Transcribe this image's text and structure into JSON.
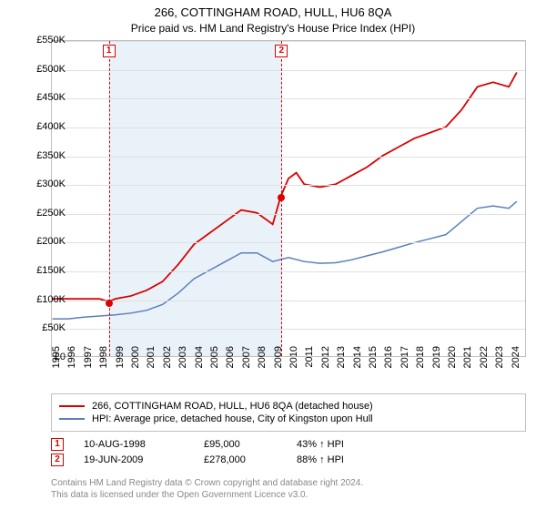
{
  "title": "266, COTTINGHAM ROAD, HULL, HU6 8QA",
  "subtitle": "Price paid vs. HM Land Registry's House Price Index (HPI)",
  "chart": {
    "type": "line",
    "background_color": "#ffffff",
    "grid_color": "#e0e0e0",
    "border_color": "#c0c0c0",
    "shade_band_color": "#eaf2f9",
    "shade_band_xrange": [
      1998.6,
      2009.5
    ],
    "xlim": [
      1995,
      2025
    ],
    "ylim": [
      0,
      550000
    ],
    "ytick_step": 50000,
    "yticks": [
      "£0",
      "£50K",
      "£100K",
      "£150K",
      "£200K",
      "£250K",
      "£300K",
      "£350K",
      "£400K",
      "£450K",
      "£500K",
      "£550K"
    ],
    "xticks": [
      1995,
      1996,
      1997,
      1998,
      1999,
      2000,
      2001,
      2002,
      2003,
      2004,
      2005,
      2006,
      2007,
      2008,
      2009,
      2010,
      2011,
      2012,
      2013,
      2014,
      2015,
      2016,
      2017,
      2018,
      2019,
      2020,
      2021,
      2022,
      2023,
      2024
    ],
    "series": [
      {
        "name": "266, COTTINGHAM ROAD, HULL, HU6 8QA (detached house)",
        "color": "#d90000",
        "line_width": 1.8,
        "data": [
          [
            1995,
            100000
          ],
          [
            1996,
            100000
          ],
          [
            1997,
            100000
          ],
          [
            1998,
            100000
          ],
          [
            1998.6,
            95000
          ],
          [
            1999,
            100000
          ],
          [
            2000,
            105000
          ],
          [
            2001,
            115000
          ],
          [
            2002,
            130000
          ],
          [
            2003,
            160000
          ],
          [
            2004,
            195000
          ],
          [
            2005,
            215000
          ],
          [
            2006,
            235000
          ],
          [
            2007,
            255000
          ],
          [
            2008,
            250000
          ],
          [
            2009,
            230000
          ],
          [
            2009.5,
            278000
          ],
          [
            2010,
            310000
          ],
          [
            2010.5,
            320000
          ],
          [
            2011,
            300000
          ],
          [
            2012,
            295000
          ],
          [
            2013,
            300000
          ],
          [
            2014,
            315000
          ],
          [
            2015,
            330000
          ],
          [
            2016,
            350000
          ],
          [
            2017,
            365000
          ],
          [
            2018,
            380000
          ],
          [
            2019,
            390000
          ],
          [
            2020,
            400000
          ],
          [
            2021,
            430000
          ],
          [
            2022,
            470000
          ],
          [
            2023,
            478000
          ],
          [
            2024,
            470000
          ],
          [
            2024.5,
            495000
          ]
        ]
      },
      {
        "name": "HPI: Average price, detached house, City of Kingston upon Hull",
        "color": "#5b7fb8",
        "line_width": 1.5,
        "data": [
          [
            1995,
            65000
          ],
          [
            1996,
            65000
          ],
          [
            1997,
            68000
          ],
          [
            1998,
            70000
          ],
          [
            1999,
            72000
          ],
          [
            2000,
            75000
          ],
          [
            2001,
            80000
          ],
          [
            2002,
            90000
          ],
          [
            2003,
            110000
          ],
          [
            2004,
            135000
          ],
          [
            2005,
            150000
          ],
          [
            2006,
            165000
          ],
          [
            2007,
            180000
          ],
          [
            2008,
            180000
          ],
          [
            2009,
            165000
          ],
          [
            2010,
            172000
          ],
          [
            2011,
            165000
          ],
          [
            2012,
            162000
          ],
          [
            2013,
            163000
          ],
          [
            2014,
            168000
          ],
          [
            2015,
            175000
          ],
          [
            2016,
            182000
          ],
          [
            2017,
            190000
          ],
          [
            2018,
            198000
          ],
          [
            2019,
            205000
          ],
          [
            2020,
            212000
          ],
          [
            2021,
            235000
          ],
          [
            2022,
            258000
          ],
          [
            2023,
            262000
          ],
          [
            2024,
            258000
          ],
          [
            2024.5,
            270000
          ]
        ]
      }
    ],
    "markers": [
      {
        "id": "1",
        "x": 1998.6,
        "y": 95000
      },
      {
        "id": "2",
        "x": 2009.5,
        "y": 278000
      }
    ]
  },
  "legend": {
    "items": [
      {
        "color": "#d90000",
        "label": "266, COTTINGHAM ROAD, HULL, HU6 8QA (detached house)"
      },
      {
        "color": "#5b7fb8",
        "label": "HPI: Average price, detached house, City of Kingston upon Hull"
      }
    ]
  },
  "transactions": [
    {
      "id": "1",
      "date": "10-AUG-1998",
      "price": "£95,000",
      "pct": "43%",
      "arrow": "↑",
      "suffix": "HPI"
    },
    {
      "id": "2",
      "date": "19-JUN-2009",
      "price": "£278,000",
      "pct": "88%",
      "arrow": "↑",
      "suffix": "HPI"
    }
  ],
  "footer": {
    "line1": "Contains HM Land Registry data © Crown copyright and database right 2024.",
    "line2": "This data is licensed under the Open Government Licence v3.0."
  }
}
